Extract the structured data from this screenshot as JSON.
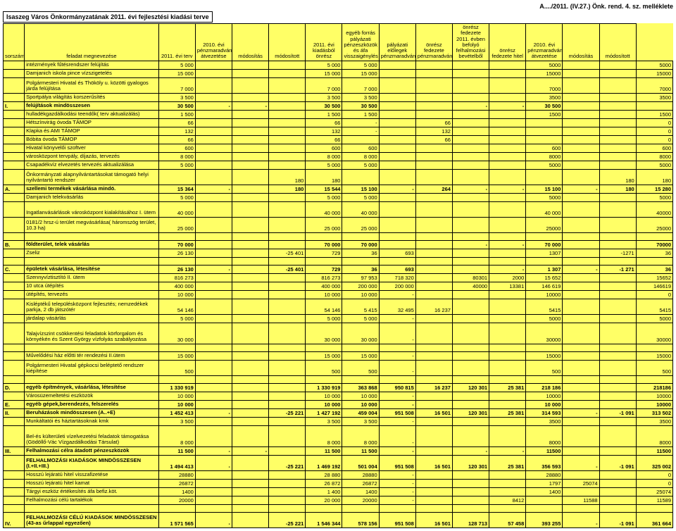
{
  "meta": {
    "top_right": "A..../2011. (IV.27.) Önk. rend. 4. sz. melléklete",
    "title": "Isaszeg Város Önkormányzatának 2011. évi fejlesztési kiadási terve"
  },
  "headers": {
    "c0": "sorszám",
    "c1": "feladat megnevezése",
    "c2": "2011. évi terv",
    "c3": "2010. évi pénzmaradvány átvezetése",
    "c4": "módosítás",
    "c5": "módosított",
    "c6": "2011. évi kiadásból önrész",
    "c7": "egyéb forrás pályázati pénzeszközök és áfa visszaigénylés",
    "c8": "pályázati előlegek pénzmaradvány",
    "c9": "önrész fedezete pénzmaradvány",
    "c10": "önrész fedezete 2011. évben befolyó felhalmozási bevételből",
    "c11": "önrész fedezete hitel",
    "c12": "2010. évi pénzmaradvány átvezetése",
    "c13": "módosítás",
    "c14": "módosított"
  },
  "rows": [
    {
      "sn": "",
      "label": "intézmények fűtésrendszer felújítás",
      "v": [
        "5 000",
        "",
        "",
        "",
        "5 000",
        "5 000",
        "",
        "",
        "",
        "",
        "5000",
        "",
        "",
        "5000"
      ]
    },
    {
      "sn": "",
      "label": "Damjanich iskola pince vízszigetelés",
      "v": [
        "15 000",
        "",
        "",
        "",
        "15 000",
        "15 000",
        "",
        "",
        "",
        "",
        "15000",
        "",
        "",
        "15000"
      ]
    },
    {
      "sn": "",
      "label": "Polgármesteri Hivatal és Thököly u. közötti gyalogos járda felújítása",
      "v": [
        "7 000",
        "",
        "",
        "",
        "7 000",
        "7 000",
        "",
        "",
        "",
        "",
        "7000",
        "",
        "",
        "7000"
      ],
      "tall": true
    },
    {
      "sn": "",
      "label": "Sportpálya világítás korszerűsítés",
      "v": [
        "3 500",
        "",
        "",
        "",
        "3 500",
        "3 500",
        "",
        "",
        "",
        "",
        "3500",
        "",
        "",
        "3500"
      ]
    },
    {
      "sn": "I.",
      "label": "felújítások mindösszesen",
      "v": [
        "30 500",
        "-",
        "-",
        "",
        "30 500",
        "30 500",
        "",
        "",
        "-",
        "-",
        "30 500",
        "",
        "",
        ""
      ],
      "bold": true
    },
    {
      "sn": "",
      "label": "hulladékgazdálkodási teendők( terv aktualizálás)",
      "v": [
        "1 500",
        "",
        "",
        "",
        "1 500",
        "1 500",
        "",
        "",
        "",
        "",
        "1500",
        "",
        "",
        "1500"
      ]
    },
    {
      "sn": "",
      "label": "Hétszínvirág óvoda TÁMOP",
      "v": [
        "66",
        "",
        "",
        "",
        "66",
        "-",
        "",
        "66",
        "",
        "",
        "",
        "",
        "",
        "0"
      ]
    },
    {
      "sn": "",
      "label": "Klapka és AMI TÁMOP",
      "v": [
        "132",
        "",
        "",
        "",
        "132",
        "-",
        "",
        "132",
        "",
        "",
        "",
        "",
        "",
        "0"
      ]
    },
    {
      "sn": "",
      "label": "Bóbita óvoda TÁMOP",
      "v": [
        "66",
        "",
        "",
        "",
        "66",
        "",
        "",
        "66",
        "",
        "",
        "",
        "",
        "",
        "0"
      ]
    },
    {
      "sn": "",
      "label": "Hivatal könyvelői szoftver",
      "v": [
        "600",
        "",
        "",
        "",
        "600",
        "600",
        "",
        "",
        "",
        "",
        "600",
        "",
        "",
        "600"
      ]
    },
    {
      "sn": "",
      "label": "városközpont tervpály, díjazás, tervezés",
      "v": [
        "8 000",
        "",
        "",
        "",
        "8 000",
        "8 000",
        "",
        "",
        "",
        "",
        "8000",
        "",
        "",
        "8000"
      ]
    },
    {
      "sn": "",
      "label": "Csapadékvíz elvezetés tervezés aktualizálása",
      "v": [
        "5 000",
        "",
        "",
        "",
        "5 000",
        "5 000",
        "",
        "",
        "",
        "",
        "5000",
        "",
        "",
        "5000"
      ]
    },
    {
      "sn": "",
      "label": "Önkormányzati alapnyilvántartásokat támogató helyi nyilvántartó rendszer",
      "v": [
        "",
        "",
        "",
        "180",
        "180",
        "",
        "",
        "",
        "",
        "",
        "",
        "",
        "180",
        "180"
      ],
      "tall": true
    },
    {
      "sn": "A.",
      "label": "szellemi termékek vásárlása mindö.",
      "v": [
        "15 364",
        "-",
        "",
        "180",
        "15 544",
        "15 100",
        "-",
        "264",
        "-",
        "-",
        "15 100",
        "-",
        "180",
        "15 280"
      ],
      "bold": true
    },
    {
      "sn": "",
      "label": "Damjanich telekvásárlás",
      "v": [
        "5 000",
        "",
        "",
        "",
        "5 000",
        "5 000",
        "",
        "",
        "",
        "",
        "5000",
        "",
        "",
        "5000"
      ]
    },
    {
      "sn": "",
      "label": "Ingatlanvásárlások városközpont kialakításához I. ütem",
      "v": [
        "40 000",
        "",
        "",
        "",
        "40 000",
        "40 000",
        "",
        "",
        "",
        "",
        "40 000",
        "",
        "",
        "40000"
      ],
      "tall": true
    },
    {
      "sn": "",
      "label": "0181/2 hrsz-ú terület megvásárlása( háromszög terület, 10.3 ha)",
      "v": [
        "25 000",
        "",
        "",
        "",
        "25 000",
        "25 000",
        "",
        "",
        "",
        "",
        "25000",
        "",
        "",
        "25000"
      ],
      "tall": true
    },
    {
      "sn": "",
      "label": "",
      "v": [
        "",
        "",
        "",
        "",
        "",
        "",
        "",
        "",
        "",
        "",
        "",
        "",
        "",
        ""
      ]
    },
    {
      "sn": "B.",
      "label": "földterület, telek vásárlás",
      "v": [
        "70 000",
        "",
        "",
        "",
        "70 000",
        "70 000",
        "",
        "",
        "-",
        "-",
        "70 000",
        "",
        "",
        "70000"
      ],
      "bold": true
    },
    {
      "sn": "",
      "label": "Zseliz",
      "v": [
        "26 130",
        "",
        "",
        "-25 401",
        "729",
        "36",
        "693",
        "",
        "",
        "",
        "1307",
        "",
        "-1271",
        "36"
      ]
    },
    {
      "sn": "",
      "label": "",
      "v": [
        "",
        "",
        "",
        "",
        "",
        "",
        "",
        "",
        "",
        "",
        "",
        "",
        "",
        ""
      ]
    },
    {
      "sn": "C.",
      "label": "épületek vásárlása, létesítése",
      "v": [
        "26 130",
        "-",
        "",
        "-25 401",
        "729",
        "36",
        "693",
        "",
        "",
        "-",
        "1 307",
        "-",
        "-1 271",
        "36"
      ],
      "bold": true
    },
    {
      "sn": "",
      "label": "Szennyvíztisztító II. ütem",
      "v": [
        "816 273",
        "",
        "",
        "",
        "816 273",
        "97 953",
        "718 320",
        "",
        "80301",
        "2000",
        "15 652",
        "",
        "",
        "15652"
      ]
    },
    {
      "sn": "",
      "label": "10 utca útépítés",
      "v": [
        "400 000",
        "",
        "",
        "",
        "400 000",
        "200 000",
        "200 000",
        "",
        "40000",
        "13381",
        "146 619",
        "",
        "",
        "146619"
      ]
    },
    {
      "sn": "",
      "label": "útépítés, tervezés",
      "v": [
        "10 000",
        "",
        "",
        "",
        "10 000",
        "10 000",
        "-",
        "",
        "",
        "",
        "10000",
        "",
        "",
        "0"
      ]
    },
    {
      "sn": "",
      "label": "Kisléptékű településközpont fejlesztés; nemzedékek parkja, 2 db játszótér",
      "v": [
        "54 146",
        "",
        "",
        "",
        "54 146",
        "5 415",
        "32 495",
        "16 237",
        "",
        "",
        "5415",
        "",
        "",
        "5415"
      ],
      "tall": true
    },
    {
      "sn": "",
      "label": "járdalap vásárlás",
      "v": [
        "5 000",
        "",
        "",
        "",
        "5 000",
        "5 000",
        "-",
        "",
        "",
        "",
        "5000",
        "",
        "",
        "5000"
      ]
    },
    {
      "sn": "",
      "label": "Talajvízszint csökkentési feladatok körforgalom és környékén és Szent György vízfolyás szabályozása",
      "v": [
        "30 000",
        "",
        "",
        "",
        "30 000",
        "30 000",
        "-",
        "",
        "",
        "",
        "30000",
        "",
        "",
        "30000"
      ],
      "tall3": true
    },
    {
      "sn": "",
      "label": "",
      "v": [
        "",
        "",
        "",
        "",
        "",
        "",
        "",
        "",
        "",
        "",
        "",
        "",
        "",
        ""
      ]
    },
    {
      "sn": "",
      "label": "Művelődési ház előtti tér rendezési II.ütem",
      "v": [
        "15 000",
        "",
        "",
        "",
        "15 000",
        "15 000",
        "-",
        "",
        "",
        "",
        "15000",
        "",
        "",
        "15000"
      ]
    },
    {
      "sn": "",
      "label": "Polgármesteri Hivatal gépkocsi beléptető rendszer kiépítése",
      "v": [
        "500",
        "",
        "",
        "",
        "500",
        "500",
        "-",
        "",
        "",
        "",
        "500",
        "",
        "",
        "500"
      ],
      "tall": true
    },
    {
      "sn": "",
      "label": "",
      "v": [
        "",
        "",
        "",
        "",
        "",
        "",
        "",
        "",
        "",
        "",
        "",
        "",
        "",
        ""
      ]
    },
    {
      "sn": "D.",
      "label": "egyéb építmények, vásárlása, létesítése",
      "v": [
        "1 330 919",
        "",
        "",
        "",
        "1 330 919",
        "363 868",
        "950 815",
        "16 237",
        "120 301",
        "25 381",
        "218 186",
        "",
        "",
        "218186"
      ],
      "bold": true
    },
    {
      "sn": "",
      "label": "Városüzemeltetési eszközök",
      "v": [
        "10 000",
        "",
        "",
        "",
        "10 000",
        "10 000",
        "-",
        "",
        "",
        "",
        "10000",
        "",
        "",
        "10000"
      ]
    },
    {
      "sn": "E.",
      "label": "egyéb gépek,berendezés, felszerelés",
      "v": [
        "10 000",
        "",
        "",
        "",
        "10 000",
        "10 000",
        "-",
        "",
        "",
        "",
        "10 000",
        "",
        "",
        "10000"
      ],
      "bold": true
    },
    {
      "sn": "II.",
      "label": "Beruházások mindösszesen (A..+E)",
      "v": [
        "1 452 413",
        "-",
        "",
        "-25 221",
        "1 427 192",
        "459 004",
        "951 508",
        "16 501",
        "120 301",
        "25 381",
        "314 593",
        "-",
        "-1 091",
        "313 502"
      ],
      "bold": true
    },
    {
      "sn": "",
      "label": "Munkáltatói és háztartásoknak kmk",
      "v": [
        "3 500",
        "",
        "",
        "",
        "3 500",
        "3 500",
        "-",
        "",
        "",
        "",
        "3500",
        "",
        "",
        "3500"
      ]
    },
    {
      "sn": "",
      "label": "Bel-és külterületi vízelvezetési feladatok támogatása (Gödöllő-Vác Vízgazdálkodási Társulat)",
      "v": [
        "8 000",
        "",
        "",
        "",
        "8 000",
        "8 000",
        "-",
        "",
        "",
        "",
        "8000",
        "",
        "",
        "8000"
      ],
      "tall3": true
    },
    {
      "sn": "III.",
      "label": "Felhalmozási célra átadott pénzeszközök",
      "v": [
        "11 500",
        "-",
        "-",
        "",
        "11 500",
        "11 500",
        "-",
        "",
        "-",
        "-",
        "11500",
        "",
        "",
        "11500"
      ],
      "bold": true
    },
    {
      "sn": "",
      "label": "FELHALMOZÁSI KIADÁSOK MINDÖSSZESEN (I.+II.+III.)",
      "v": [
        "1 494 413",
        "-",
        "",
        "-25 221",
        "1 469 192",
        "501 004",
        "951 508",
        "16 501",
        "120 301",
        "25 381",
        "356 593",
        "-",
        "-1 091",
        "325 002"
      ],
      "bold": true,
      "tall": true
    },
    {
      "sn": "",
      "label": "Hosszú lejáratú hitel visszafizetése",
      "v": [
        "28880",
        "",
        "",
        "",
        "28 880",
        "28880",
        "-",
        "",
        "",
        "",
        "28880",
        "",
        "",
        "0"
      ]
    },
    {
      "sn": "",
      "label": "Hosszú lejáratú hitel kamat",
      "v": [
        "26872",
        "",
        "",
        "",
        "26 872",
        "26872",
        "-",
        "",
        "",
        "",
        "1797",
        "25074",
        "",
        "0"
      ]
    },
    {
      "sn": "",
      "label": "Tárgyi eszköz értékesítés áfa befiz.köt.",
      "v": [
        "1400",
        "",
        "",
        "",
        "1 400",
        "1400",
        "-",
        "",
        "",
        "",
        "1400",
        "",
        "",
        "25074"
      ]
    },
    {
      "sn": "",
      "label": "Felhalmozási célú tartalékok",
      "v": [
        "20000",
        "",
        "",
        "",
        "20 000",
        "20000",
        "-",
        "",
        "",
        "8412",
        "",
        "11588",
        "",
        "11589"
      ]
    },
    {
      "sn": "",
      "label": "",
      "v": [
        "",
        "",
        "",
        "",
        "",
        "",
        "",
        "",
        "",
        "",
        "",
        "",
        "",
        ""
      ]
    },
    {
      "sn": "IV.",
      "label": "FELHALMOZÁSI CÉLÚ KIADÁSOK MINDÖSSZESEN (43-as űrlappal egyezően)",
      "v": [
        "1 571 565",
        "-",
        "",
        "-25 221",
        "1 546 344",
        "578 156",
        "951 508",
        "16 501",
        "128 713",
        "57 458",
        "393 255",
        "-",
        "-1 091",
        "361 664"
      ],
      "bold": true,
      "tall": true
    }
  ]
}
